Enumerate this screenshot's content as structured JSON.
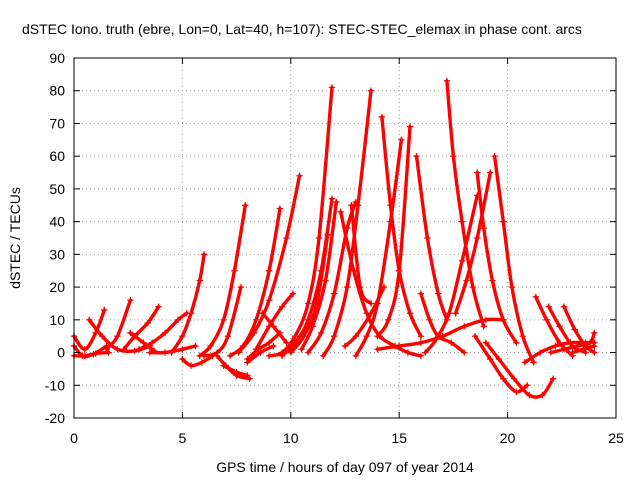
{
  "chart_data": {
    "type": "line",
    "title": "dSTEC Iono. truth (ebre, Lon=0, Lat=40, h=107): STEC-STEC_elemax in phase cont. arcs",
    "xlabel": "GPS time / hours of day 097 of year 2014",
    "ylabel": "dSTEC  / TECUs",
    "xlim": [
      0,
      25
    ],
    "ylim": [
      -20,
      90
    ],
    "xticks": [
      0,
      5,
      10,
      15,
      20,
      25
    ],
    "yticks": [
      -20,
      -10,
      0,
      10,
      20,
      30,
      40,
      50,
      60,
      70,
      80,
      90
    ],
    "grid": true,
    "marker": "+",
    "color": "#ff0000",
    "series": [
      {
        "x": [
          0.0,
          0.5,
          1.0,
          1.4
        ],
        "y": [
          5,
          1,
          6,
          13
        ]
      },
      {
        "x": [
          0.0,
          0.4,
          0.9,
          1.5
        ],
        "y": [
          2,
          -1,
          -0.5,
          2
        ]
      },
      {
        "x": [
          0.0,
          0.5,
          1.0,
          1.6
        ],
        "y": [
          -1,
          -1,
          -0.3,
          0
        ]
      },
      {
        "x": [
          0.7,
          1.3,
          2.0,
          2.8,
          3.5
        ],
        "y": [
          10,
          5,
          1,
          0.5,
          2
        ]
      },
      {
        "x": [
          1.5,
          2.0,
          2.6
        ],
        "y": [
          1,
          5,
          16
        ]
      },
      {
        "x": [
          2.3,
          2.8,
          3.4,
          3.9
        ],
        "y": [
          1,
          5,
          9,
          14
        ]
      },
      {
        "x": [
          2.6,
          3.2,
          3.7
        ],
        "y": [
          6,
          3,
          0.5
        ]
      },
      {
        "x": [
          3.0,
          3.6,
          4.2,
          4.8,
          5.2
        ],
        "y": [
          1,
          3,
          6,
          10,
          12
        ]
      },
      {
        "x": [
          3.5,
          4.2,
          5.0,
          5.6
        ],
        "y": [
          0,
          0,
          1,
          2
        ]
      },
      {
        "x": [
          4.5,
          5.0,
          5.4,
          5.8,
          6.0
        ],
        "y": [
          0,
          5,
          12,
          22,
          30
        ]
      },
      {
        "x": [
          5.0,
          5.4,
          5.9,
          6.4
        ],
        "y": [
          -2,
          -4,
          -3,
          -1
        ]
      },
      {
        "x": [
          5.8,
          6.3,
          6.9,
          7.4,
          7.9
        ],
        "y": [
          -1,
          2,
          10,
          25,
          45
        ]
      },
      {
        "x": [
          6.0,
          6.6,
          7.1,
          7.7
        ],
        "y": [
          -1,
          0,
          5,
          20
        ]
      },
      {
        "x": [
          6.6,
          7.0,
          7.5,
          8.1
        ],
        "y": [
          -1,
          -4,
          -7,
          -8
        ]
      },
      {
        "x": [
          6.9,
          7.5,
          8.0
        ],
        "y": [
          -4,
          -6,
          -7
        ]
      },
      {
        "x": [
          7.2,
          7.8,
          8.4,
          9.0,
          9.5
        ],
        "y": [
          -1,
          2,
          10,
          25,
          44
        ]
      },
      {
        "x": [
          7.6,
          8.3,
          9.0,
          9.8,
          10.4
        ],
        "y": [
          0,
          6,
          16,
          35,
          54
        ]
      },
      {
        "x": [
          8.0,
          8.5,
          9.0,
          9.5
        ],
        "y": [
          -2,
          1,
          3,
          6
        ]
      },
      {
        "x": [
          8.4,
          9.0,
          9.6,
          10.1
        ],
        "y": [
          1,
          8,
          14,
          18
        ]
      },
      {
        "x": [
          8.7,
          9.2,
          9.8
        ],
        "y": [
          12,
          8,
          3
        ]
      },
      {
        "x": [
          8.0,
          8.6,
          9.2
        ],
        "y": [
          -3,
          0,
          2
        ]
      },
      {
        "x": [
          9.0,
          9.6,
          10.2,
          10.8,
          11.3,
          11.9
        ],
        "y": [
          -1,
          0,
          5,
          15,
          35,
          81
        ]
      },
      {
        "x": [
          9.6,
          10.2,
          10.8,
          11.4,
          11.9
        ],
        "y": [
          -1,
          3,
          10,
          25,
          47
        ]
      },
      {
        "x": [
          10.0,
          10.6,
          11.2,
          11.7
        ],
        "y": [
          0,
          5,
          15,
          36
        ]
      },
      {
        "x": [
          10.5,
          11.0,
          11.6,
          12.1
        ],
        "y": [
          1,
          8,
          22,
          46
        ]
      },
      {
        "x": [
          10.8,
          11.4,
          12.0,
          12.6,
          13.0
        ],
        "y": [
          0,
          6,
          18,
          38,
          46
        ]
      },
      {
        "x": [
          12.3,
          12.9,
          13.5,
          14.1,
          14.8,
          15.4,
          16.0
        ],
        "y": [
          43,
          25,
          12,
          5,
          2,
          0,
          -1
        ]
      },
      {
        "x": [
          12.8,
          13.2,
          13.7
        ],
        "y": [
          45,
          20,
          15
        ]
      },
      {
        "x": [
          11.5,
          12.0,
          12.6,
          13.1,
          13.7
        ],
        "y": [
          -1,
          5,
          20,
          45,
          80
        ]
      },
      {
        "x": [
          12.5,
          13.0,
          13.7,
          14.3
        ],
        "y": [
          2,
          5,
          12,
          20
        ]
      },
      {
        "x": [
          13.0,
          13.5,
          14.0,
          14.6,
          15.1
        ],
        "y": [
          -1,
          5,
          15,
          40,
          65
        ]
      },
      {
        "x": [
          14.0,
          14.5,
          15.0,
          15.5
        ],
        "y": [
          5,
          10,
          25,
          69
        ]
      },
      {
        "x": [
          14.2,
          14.6,
          15.0,
          15.5,
          16.0
        ],
        "y": [
          72,
          45,
          25,
          12,
          5
        ]
      },
      {
        "x": [
          15.8,
          16.3,
          16.8,
          17.2
        ],
        "y": [
          60,
          35,
          18,
          10
        ]
      },
      {
        "x": [
          16.0,
          16.4,
          16.8,
          17.4,
          18.0
        ],
        "y": [
          18,
          10,
          5,
          3,
          0
        ]
      },
      {
        "x": [
          16.2,
          16.7,
          17.3,
          17.9,
          18.6
        ],
        "y": [
          0,
          4,
          12,
          28,
          48
        ]
      },
      {
        "x": [
          17.2,
          17.5,
          17.9,
          18.4,
          18.9
        ],
        "y": [
          83,
          60,
          40,
          20,
          8
        ]
      },
      {
        "x": [
          17.6,
          18.1,
          18.6,
          19.2
        ],
        "y": [
          12,
          22,
          35,
          55
        ]
      },
      {
        "x": [
          18.6,
          18.9,
          19.3,
          19.8,
          20.4
        ],
        "y": [
          55,
          38,
          22,
          10,
          3
        ]
      },
      {
        "x": [
          19.4,
          19.8,
          20.2,
          20.7,
          21.2
        ],
        "y": [
          60,
          40,
          20,
          5,
          -3
        ]
      },
      {
        "x": [
          19.0,
          19.6,
          20.3,
          21.0,
          21.6,
          22.1
        ],
        "y": [
          3,
          -2,
          -8,
          -13,
          -13,
          -8
        ]
      },
      {
        "x": [
          18.5,
          19.2,
          19.8,
          20.4,
          20.9
        ],
        "y": [
          5,
          -2,
          -8,
          -12,
          -10
        ]
      },
      {
        "x": [
          14.0,
          15.0,
          16.0,
          17.0,
          18.0,
          19.0,
          19.8
        ],
        "y": [
          1,
          2,
          3,
          5,
          8,
          10,
          10
        ]
      },
      {
        "x": [
          21.3,
          21.8,
          22.4,
          23.0
        ],
        "y": [
          17,
          10,
          3,
          -1
        ]
      },
      {
        "x": [
          21.9,
          22.4,
          23.0,
          23.6
        ],
        "y": [
          14,
          8,
          2,
          0
        ]
      },
      {
        "x": [
          22.6,
          23.1,
          23.6,
          24.0
        ],
        "y": [
          14,
          7,
          2,
          0
        ]
      },
      {
        "x": [
          20.8,
          21.5,
          22.2,
          22.9,
          23.6,
          24.0
        ],
        "y": [
          -3,
          0,
          2,
          3,
          3,
          3
        ]
      },
      {
        "x": [
          22.0,
          22.6,
          23.2,
          23.8,
          24.0
        ],
        "y": [
          0,
          1,
          2,
          3,
          6
        ]
      },
      {
        "x": [
          23.0,
          23.5,
          24.0
        ],
        "y": [
          0,
          1,
          2
        ]
      }
    ]
  }
}
